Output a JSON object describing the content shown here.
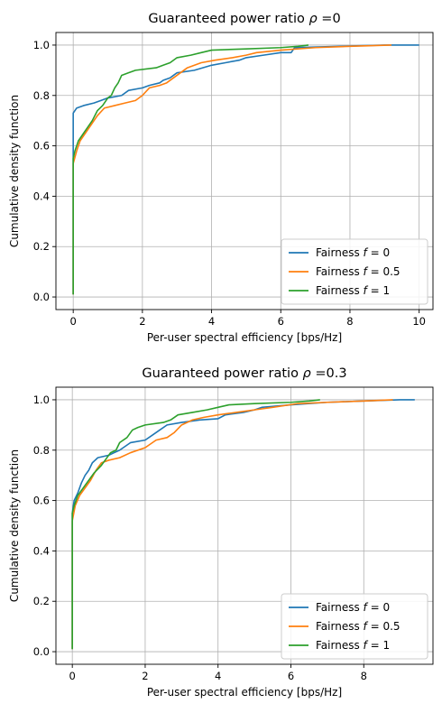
{
  "chart_data": [
    {
      "type": "line",
      "title": "Guaranteed power ratio ρ =0",
      "title_prefix": "Guaranteed power ratio ",
      "title_rho": "ρ",
      "title_suffix": " =0",
      "xlabel": "Per-user spectral efficiency [bps/Hz]",
      "ylabel": "Cumulative density function",
      "xlim": [
        -0.5,
        10.4
      ],
      "ylim": [
        -0.05,
        1.05
      ],
      "xticks": [
        0,
        2,
        4,
        6,
        8,
        10
      ],
      "yticks": [
        0.0,
        0.2,
        0.4,
        0.6,
        0.8,
        1.0
      ],
      "xtick_labels": [
        "0",
        "2",
        "4",
        "6",
        "8",
        "10"
      ],
      "ytick_labels": [
        "0.0",
        "0.2",
        "0.4",
        "0.6",
        "0.8",
        "1.0"
      ],
      "grid": true,
      "legend_position": "lower-right",
      "series": [
        {
          "name": "Fairness f = 0",
          "legend_prefix": "Fairness ",
          "legend_var": "f",
          "legend_suffix": " = 0",
          "color": "#1f77b4",
          "points": [
            [
              0,
              0.01
            ],
            [
              0,
              0.73
            ],
            [
              0.1,
              0.75
            ],
            [
              0.3,
              0.76
            ],
            [
              0.6,
              0.77
            ],
            [
              0.8,
              0.78
            ],
            [
              1.0,
              0.79
            ],
            [
              1.4,
              0.8
            ],
            [
              1.6,
              0.82
            ],
            [
              2.0,
              0.83
            ],
            [
              2.2,
              0.84
            ],
            [
              2.5,
              0.85
            ],
            [
              2.6,
              0.86
            ],
            [
              2.8,
              0.87
            ],
            [
              2.9,
              0.88
            ],
            [
              3.0,
              0.89
            ],
            [
              3.5,
              0.9
            ],
            [
              4.0,
              0.92
            ],
            [
              4.4,
              0.93
            ],
            [
              4.8,
              0.94
            ],
            [
              5.0,
              0.95
            ],
            [
              5.5,
              0.96
            ],
            [
              6.0,
              0.97
            ],
            [
              6.3,
              0.97
            ],
            [
              6.4,
              0.99
            ],
            [
              9.0,
              1.0
            ],
            [
              10.0,
              1.0
            ]
          ]
        },
        {
          "name": "Fairness f = 0.5",
          "legend_prefix": "Fairness ",
          "legend_var": "f",
          "legend_suffix": " = 0.5",
          "color": "#ff7f0e",
          "points": [
            [
              0,
              0.01
            ],
            [
              0,
              0.53
            ],
            [
              0.1,
              0.58
            ],
            [
              0.2,
              0.62
            ],
            [
              0.35,
              0.65
            ],
            [
              0.5,
              0.68
            ],
            [
              0.7,
              0.72
            ],
            [
              0.9,
              0.75
            ],
            [
              1.2,
              0.76
            ],
            [
              1.5,
              0.77
            ],
            [
              1.8,
              0.78
            ],
            [
              2.0,
              0.8
            ],
            [
              2.2,
              0.83
            ],
            [
              2.5,
              0.84
            ],
            [
              2.7,
              0.85
            ],
            [
              3.0,
              0.88
            ],
            [
              3.3,
              0.91
            ],
            [
              3.7,
              0.93
            ],
            [
              4.1,
              0.94
            ],
            [
              4.6,
              0.95
            ],
            [
              5.0,
              0.96
            ],
            [
              5.3,
              0.97
            ],
            [
              6.0,
              0.98
            ],
            [
              7.0,
              0.99
            ],
            [
              8.0,
              0.995
            ],
            [
              9.2,
              1.0
            ]
          ]
        },
        {
          "name": "Fairness f = 1",
          "legend_prefix": "Fairness ",
          "legend_var": "f",
          "legend_suffix": " = 1",
          "color": "#2ca02c",
          "points": [
            [
              0,
              0.01
            ],
            [
              0,
              0.55
            ],
            [
              0.05,
              0.58
            ],
            [
              0.15,
              0.62
            ],
            [
              0.3,
              0.65
            ],
            [
              0.4,
              0.67
            ],
            [
              0.55,
              0.7
            ],
            [
              0.7,
              0.74
            ],
            [
              0.85,
              0.76
            ],
            [
              1.0,
              0.79
            ],
            [
              1.1,
              0.8
            ],
            [
              1.2,
              0.83
            ],
            [
              1.3,
              0.85
            ],
            [
              1.4,
              0.88
            ],
            [
              1.6,
              0.89
            ],
            [
              1.8,
              0.9
            ],
            [
              2.4,
              0.91
            ],
            [
              2.6,
              0.92
            ],
            [
              2.8,
              0.93
            ],
            [
              3.0,
              0.95
            ],
            [
              3.4,
              0.96
            ],
            [
              3.7,
              0.97
            ],
            [
              4.0,
              0.98
            ],
            [
              5.0,
              0.985
            ],
            [
              6.0,
              0.99
            ],
            [
              6.5,
              0.995
            ],
            [
              6.8,
              1.0
            ]
          ]
        }
      ]
    },
    {
      "type": "line",
      "title": "Guaranteed power ratio ρ =0.3",
      "title_prefix": "Guaranteed power ratio ",
      "title_rho": "ρ",
      "title_suffix": " =0.3",
      "xlabel": "Per-user spectral efficiency [bps/Hz]",
      "ylabel": "Cumulative density function",
      "xlim": [
        -0.45,
        9.9
      ],
      "ylim": [
        -0.05,
        1.05
      ],
      "xticks": [
        0,
        2,
        4,
        6,
        8
      ],
      "yticks": [
        0.0,
        0.2,
        0.4,
        0.6,
        0.8,
        1.0
      ],
      "xtick_labels": [
        "0",
        "2",
        "4",
        "6",
        "8"
      ],
      "ytick_labels": [
        "0.0",
        "0.2",
        "0.4",
        "0.6",
        "0.8",
        "1.0"
      ],
      "grid": true,
      "legend_position": "lower-right",
      "series": [
        {
          "name": "Fairness f = 0",
          "legend_prefix": "Fairness ",
          "legend_var": "f",
          "legend_suffix": " = 0",
          "color": "#1f77b4",
          "points": [
            [
              0,
              0.01
            ],
            [
              0,
              0.55
            ],
            [
              0.05,
              0.6
            ],
            [
              0.15,
              0.63
            ],
            [
              0.25,
              0.67
            ],
            [
              0.35,
              0.7
            ],
            [
              0.45,
              0.72
            ],
            [
              0.55,
              0.75
            ],
            [
              0.7,
              0.77
            ],
            [
              1.0,
              0.78
            ],
            [
              1.3,
              0.8
            ],
            [
              1.6,
              0.83
            ],
            [
              2.0,
              0.84
            ],
            [
              2.2,
              0.86
            ],
            [
              2.4,
              0.88
            ],
            [
              2.6,
              0.9
            ],
            [
              3.0,
              0.91
            ],
            [
              3.5,
              0.92
            ],
            [
              4.0,
              0.925
            ],
            [
              4.2,
              0.94
            ],
            [
              4.7,
              0.95
            ],
            [
              5.0,
              0.96
            ],
            [
              5.2,
              0.97
            ],
            [
              6.0,
              0.98
            ],
            [
              7.0,
              0.99
            ],
            [
              8.0,
              0.995
            ],
            [
              9.0,
              1.0
            ],
            [
              9.4,
              1.0
            ]
          ]
        },
        {
          "name": "Fairness f = 0.5",
          "legend_prefix": "Fairness ",
          "legend_var": "f",
          "legend_suffix": " = 0.5",
          "color": "#ff7f0e",
          "points": [
            [
              0,
              0.01
            ],
            [
              0,
              0.52
            ],
            [
              0.08,
              0.58
            ],
            [
              0.2,
              0.62
            ],
            [
              0.35,
              0.65
            ],
            [
              0.5,
              0.68
            ],
            [
              0.65,
              0.72
            ],
            [
              0.8,
              0.75
            ],
            [
              1.0,
              0.76
            ],
            [
              1.3,
              0.77
            ],
            [
              1.6,
              0.79
            ],
            [
              2.0,
              0.81
            ],
            [
              2.3,
              0.84
            ],
            [
              2.6,
              0.85
            ],
            [
              2.8,
              0.87
            ],
            [
              3.0,
              0.9
            ],
            [
              3.3,
              0.92
            ],
            [
              3.6,
              0.93
            ],
            [
              4.0,
              0.94
            ],
            [
              4.5,
              0.95
            ],
            [
              5.0,
              0.96
            ],
            [
              5.5,
              0.97
            ],
            [
              6.2,
              0.985
            ],
            [
              7.0,
              0.99
            ],
            [
              8.0,
              0.995
            ],
            [
              8.8,
              1.0
            ]
          ]
        },
        {
          "name": "Fairness f = 1",
          "legend_prefix": "Fairness ",
          "legend_var": "f",
          "legend_suffix": " = 1",
          "color": "#2ca02c",
          "points": [
            [
              0,
              0.01
            ],
            [
              0,
              0.55
            ],
            [
              0.05,
              0.58
            ],
            [
              0.15,
              0.62
            ],
            [
              0.3,
              0.65
            ],
            [
              0.45,
              0.68
            ],
            [
              0.6,
              0.71
            ],
            [
              0.8,
              0.74
            ],
            [
              0.9,
              0.76
            ],
            [
              1.05,
              0.79
            ],
            [
              1.2,
              0.8
            ],
            [
              1.3,
              0.83
            ],
            [
              1.5,
              0.85
            ],
            [
              1.65,
              0.88
            ],
            [
              1.8,
              0.89
            ],
            [
              2.0,
              0.9
            ],
            [
              2.5,
              0.91
            ],
            [
              2.7,
              0.92
            ],
            [
              2.9,
              0.94
            ],
            [
              3.3,
              0.95
            ],
            [
              3.7,
              0.96
            ],
            [
              4.0,
              0.97
            ],
            [
              4.3,
              0.98
            ],
            [
              5.0,
              0.985
            ],
            [
              6.0,
              0.99
            ],
            [
              6.5,
              0.995
            ],
            [
              6.8,
              1.0
            ]
          ]
        }
      ]
    }
  ]
}
